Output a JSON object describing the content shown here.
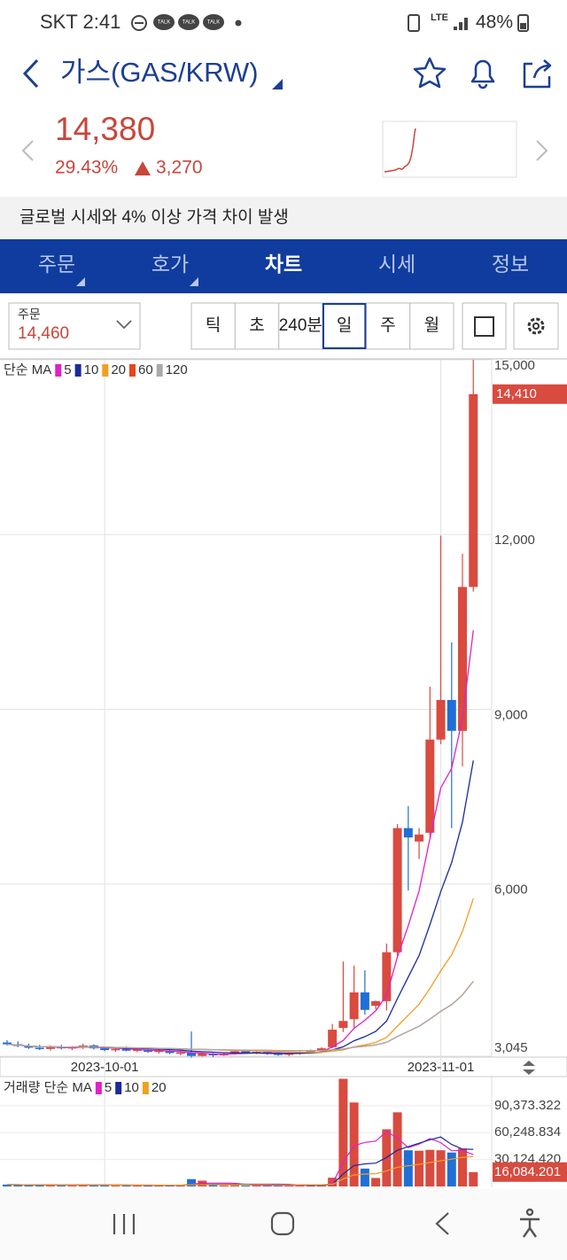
{
  "status_bar": {
    "carrier_time": "SKT 2:41",
    "talk": "TALK",
    "network": "LTE",
    "battery": "48%"
  },
  "header": {
    "title": "가스(GAS/KRW)"
  },
  "price": {
    "current": "14,380",
    "change_pct": "29.43%",
    "change": "3,270"
  },
  "notice": "글로벌 시세와 4% 이상 가격 차이 발생",
  "tabs": {
    "items": [
      "주문",
      "호가",
      "차트",
      "시세",
      "정보"
    ],
    "active": 2
  },
  "controls": {
    "order_label": "주문",
    "order_price": "14,460",
    "periods": [
      "틱",
      "초",
      "240분",
      "일",
      "주",
      "월"
    ],
    "selected": 3
  },
  "chart_data": {
    "type": "candlestick",
    "categories": [
      null,
      null,
      null,
      null,
      null,
      null,
      null,
      null,
      null,
      "2023-10-01",
      null,
      null,
      null,
      null,
      null,
      null,
      null,
      null,
      null,
      null,
      null,
      null,
      null,
      null,
      null,
      null,
      null,
      null,
      null,
      null,
      null,
      null,
      null,
      null,
      null,
      null,
      null,
      null,
      null,
      null,
      "2023-11-01",
      null,
      null,
      null
    ],
    "open": [
      3280,
      3250,
      3220,
      3190,
      3170,
      3210,
      3180,
      3200,
      3230,
      3180,
      3150,
      3170,
      3140,
      3160,
      3120,
      3140,
      3100,
      3110,
      3050,
      3090,
      3060,
      3090,
      3130,
      3100,
      3120,
      3090,
      3070,
      3095,
      3110,
      3140,
      3200,
      3530,
      3680,
      4140,
      3910,
      3990,
      4830,
      6960,
      6730,
      6880,
      8480,
      9160,
      8630,
      11100
    ],
    "high": [
      3320,
      3300,
      3260,
      3240,
      3230,
      3240,
      3220,
      3260,
      3250,
      3210,
      3200,
      3210,
      3190,
      3180,
      3160,
      3170,
      3140,
      3470,
      3110,
      3100,
      3110,
      3150,
      3160,
      3140,
      3150,
      3120,
      3110,
      3130,
      3160,
      3200,
      3600,
      4670,
      4600,
      4520,
      4000,
      4980,
      7030,
      7340,
      6960,
      9390,
      11980,
      10150,
      11670,
      15000
    ],
    "low": [
      3230,
      3200,
      3170,
      3150,
      3140,
      3160,
      3150,
      3170,
      3160,
      3130,
      3120,
      3130,
      3110,
      3100,
      3090,
      3080,
      3060,
      3020,
      3040,
      3030,
      3050,
      3070,
      3090,
      3080,
      3070,
      3050,
      3045,
      3070,
      3090,
      3120,
      3180,
      3460,
      3530,
      3760,
      3850,
      3830,
      4760,
      5890,
      6430,
      6800,
      8400,
      6960,
      8020,
      11020
    ],
    "close": [
      3250,
      3220,
      3190,
      3170,
      3210,
      3180,
      3200,
      3230,
      3180,
      3150,
      3170,
      3140,
      3160,
      3120,
      3140,
      3100,
      3110,
      3050,
      3090,
      3060,
      3090,
      3130,
      3100,
      3120,
      3090,
      3070,
      3095,
      3110,
      3140,
      3180,
      3500,
      3650,
      4140,
      3840,
      3990,
      4830,
      6960,
      6800,
      6850,
      8480,
      9160,
      8630,
      11100,
      14410
    ],
    "last_label": "14,410",
    "up_color": "#d94a3f",
    "down_color": "#1f6fd6",
    "ylim": [
      3045,
      15000
    ],
    "yticks": [
      {
        "value": 15000,
        "label": "15,000"
      },
      {
        "value": 12000,
        "label": "12,000"
      },
      {
        "value": 9000,
        "label": "9,000"
      },
      {
        "value": 6000,
        "label": "6,000"
      },
      {
        "value": 3045,
        "label": "3,045"
      }
    ],
    "ma_title": "단순 MA",
    "ma": [
      {
        "period": 5,
        "color": "#e020c8"
      },
      {
        "period": 10,
        "color": "#1a2a9c"
      },
      {
        "period": 20,
        "color": "#f0a020"
      },
      {
        "period": 60,
        "color": "#e8441e"
      },
      {
        "period": 120,
        "color": "#aaaaaa"
      }
    ],
    "volume": {
      "title": "거래량 단순 MA",
      "values": [
        2100,
        1800,
        1500,
        1900,
        1600,
        1400,
        1700,
        2000,
        1500,
        1300,
        1200,
        1400,
        1100,
        1300,
        1000,
        1200,
        1500,
        8200,
        6500,
        1400,
        1100,
        1300,
        1000,
        1200,
        1400,
        1100,
        1000,
        1300,
        1500,
        2400,
        9800,
        120500,
        94000,
        20000,
        9500,
        64000,
        83000,
        40500,
        40000,
        41000,
        40500,
        38000,
        42500,
        16084.201
      ],
      "last_label": "16,084.201",
      "ylim": [
        0,
        121000
      ],
      "yticks": [
        {
          "value": 90373.322,
          "label": "90,373.322"
        },
        {
          "value": 60248.834,
          "label": "60,248.834"
        },
        {
          "value": 30124.42,
          "label": "30,124.420"
        }
      ],
      "ma": [
        {
          "period": 5,
          "color": "#e020c8"
        },
        {
          "period": 10,
          "color": "#1a2a9c"
        },
        {
          "period": 20,
          "color": "#f0a020"
        }
      ]
    }
  }
}
